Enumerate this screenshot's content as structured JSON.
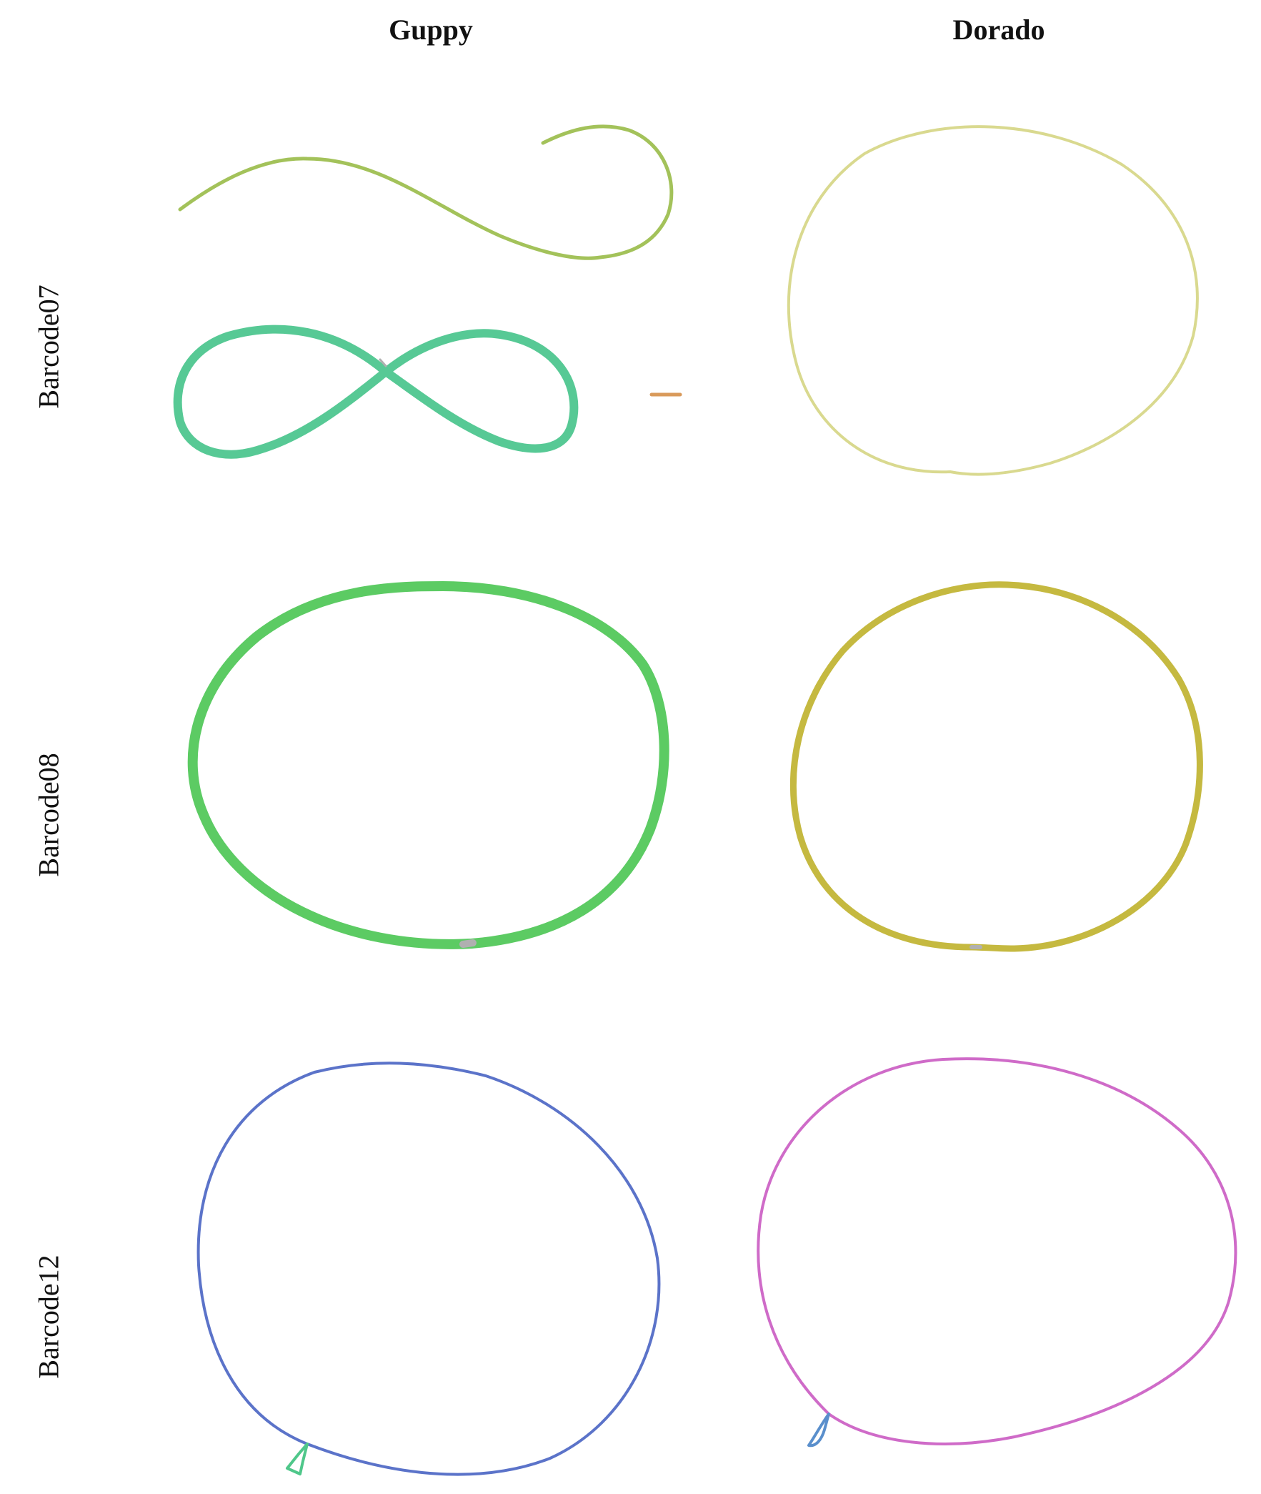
{
  "columns": {
    "guppy": "Guppy",
    "dorado": "Dorado"
  },
  "rows": {
    "barcode07": "Barcode07",
    "barcode08": "Barcode08",
    "barcode12": "Barcode12"
  },
  "colors": {
    "guppy_b07_linear": "#a3c25a",
    "guppy_b07_figure8": "#57c995",
    "guppy_b07_small": "#d99a5b",
    "dorado_b07": "#d9d98f",
    "guppy_b08": "#5ccb63",
    "dorado_b08": "#c5b940",
    "guppy_b12": "#5b73c9",
    "guppy_b12_small": "#4fc78a",
    "dorado_b12": "#cf6bc8",
    "dorado_b12_small": "#5a8fcc",
    "gap_marker": "#b0b0b0"
  }
}
